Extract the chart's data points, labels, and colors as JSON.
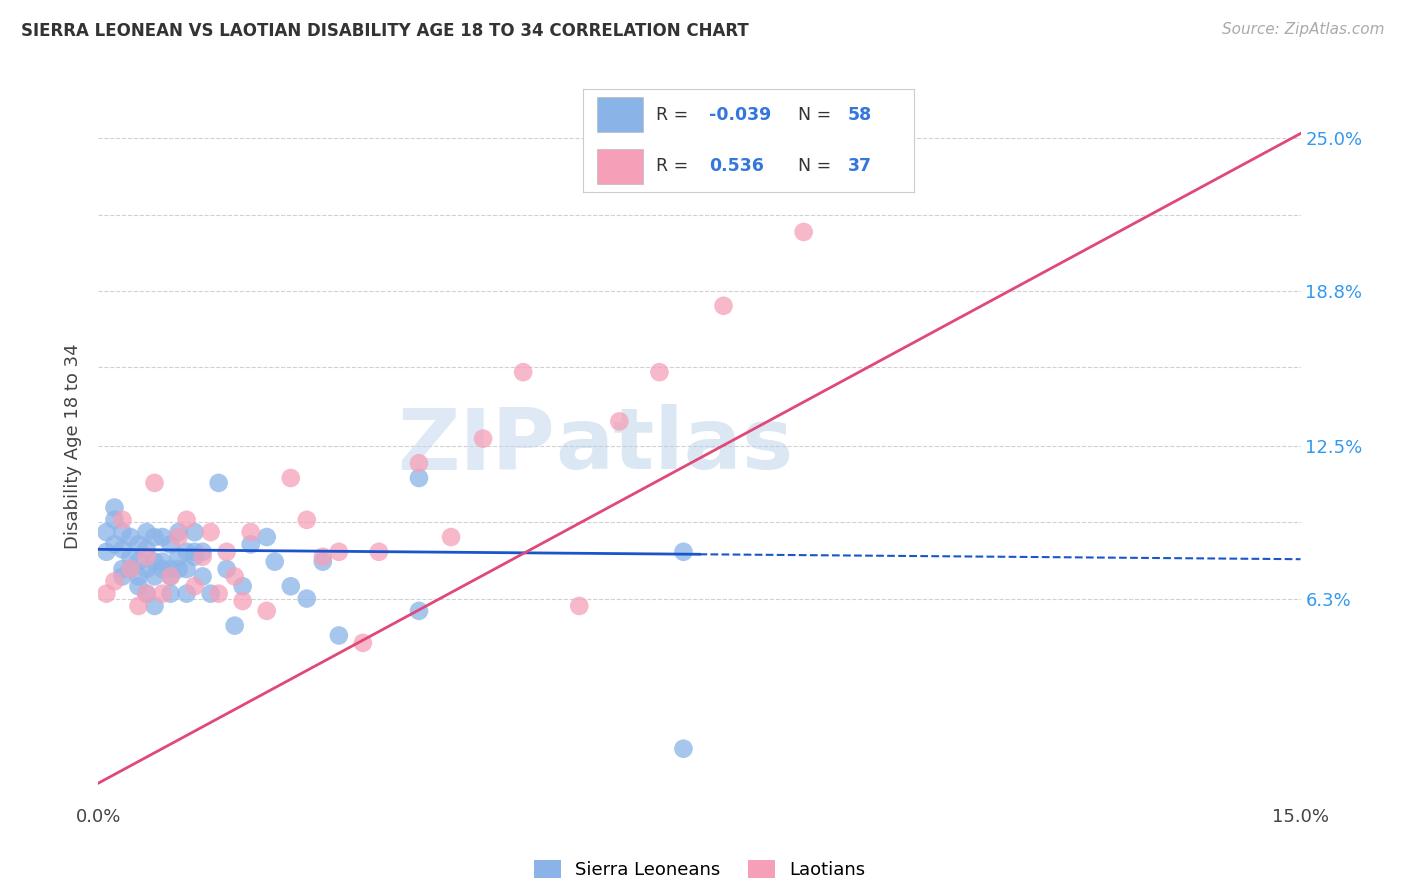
{
  "title": "SIERRA LEONEAN VS LAOTIAN DISABILITY AGE 18 TO 34 CORRELATION CHART",
  "source": "Source: ZipAtlas.com",
  "ylabel": "Disability Age 18 to 34",
  "xlim": [
    0.0,
    0.15
  ],
  "ylim": [
    -0.02,
    0.27
  ],
  "xtick_positions": [
    0.0,
    0.025,
    0.05,
    0.075,
    0.1,
    0.125,
    0.15
  ],
  "xtick_labels": [
    "0.0%",
    "",
    "",
    "",
    "",
    "",
    "15.0%"
  ],
  "ytick_positions": [
    0.063,
    0.094,
    0.125,
    0.157,
    0.188,
    0.219,
    0.25
  ],
  "ytick_labels": [
    "6.3%",
    "",
    "12.5%",
    "",
    "18.8%",
    "",
    "25.0%"
  ],
  "color_blue": "#8ab4e8",
  "color_pink": "#f5a0b8",
  "line_blue": "#1a55cc",
  "line_pink": "#e04878",
  "R1": "-0.039",
  "N1": "58",
  "R2": "0.536",
  "N2": "37",
  "watermark_zip": "ZIP",
  "watermark_atlas": "atlas",
  "blue_line_solid": [
    [
      0.0,
      0.083
    ],
    [
      0.075,
      0.081
    ]
  ],
  "blue_line_dashed": [
    [
      0.075,
      0.081
    ],
    [
      0.15,
      0.079
    ]
  ],
  "pink_line": [
    [
      0.0,
      -0.012
    ],
    [
      0.15,
      0.252
    ]
  ],
  "sierra_x": [
    0.001,
    0.001,
    0.002,
    0.002,
    0.002,
    0.003,
    0.003,
    0.003,
    0.003,
    0.004,
    0.004,
    0.004,
    0.005,
    0.005,
    0.005,
    0.005,
    0.006,
    0.006,
    0.006,
    0.006,
    0.007,
    0.007,
    0.007,
    0.007,
    0.008,
    0.008,
    0.008,
    0.009,
    0.009,
    0.009,
    0.009,
    0.01,
    0.01,
    0.01,
    0.011,
    0.011,
    0.011,
    0.012,
    0.012,
    0.012,
    0.013,
    0.013,
    0.014,
    0.015,
    0.016,
    0.017,
    0.018,
    0.019,
    0.021,
    0.022,
    0.024,
    0.026,
    0.028,
    0.03,
    0.04,
    0.04,
    0.073,
    0.073
  ],
  "sierra_y": [
    0.09,
    0.082,
    0.095,
    0.085,
    0.1,
    0.075,
    0.083,
    0.09,
    0.072,
    0.08,
    0.088,
    0.075,
    0.068,
    0.078,
    0.085,
    0.072,
    0.065,
    0.075,
    0.083,
    0.09,
    0.06,
    0.078,
    0.088,
    0.072,
    0.078,
    0.088,
    0.075,
    0.065,
    0.075,
    0.085,
    0.072,
    0.08,
    0.09,
    0.075,
    0.065,
    0.075,
    0.082,
    0.08,
    0.09,
    0.082,
    0.072,
    0.082,
    0.065,
    0.11,
    0.075,
    0.052,
    0.068,
    0.085,
    0.088,
    0.078,
    0.068,
    0.063,
    0.078,
    0.048,
    0.112,
    0.058,
    0.082,
    0.002
  ],
  "laotian_x": [
    0.001,
    0.002,
    0.003,
    0.004,
    0.005,
    0.006,
    0.006,
    0.007,
    0.008,
    0.009,
    0.01,
    0.011,
    0.012,
    0.013,
    0.014,
    0.015,
    0.016,
    0.017,
    0.018,
    0.019,
    0.021,
    0.024,
    0.026,
    0.028,
    0.03,
    0.033,
    0.035,
    0.04,
    0.044,
    0.048,
    0.053,
    0.06,
    0.065,
    0.07,
    0.078,
    0.088,
    0.1
  ],
  "laotian_y": [
    0.065,
    0.07,
    0.095,
    0.075,
    0.06,
    0.08,
    0.065,
    0.11,
    0.065,
    0.072,
    0.088,
    0.095,
    0.068,
    0.08,
    0.09,
    0.065,
    0.082,
    0.072,
    0.062,
    0.09,
    0.058,
    0.112,
    0.095,
    0.08,
    0.082,
    0.045,
    0.082,
    0.118,
    0.088,
    0.128,
    0.155,
    0.06,
    0.135,
    0.155,
    0.182,
    0.212,
    0.248
  ]
}
